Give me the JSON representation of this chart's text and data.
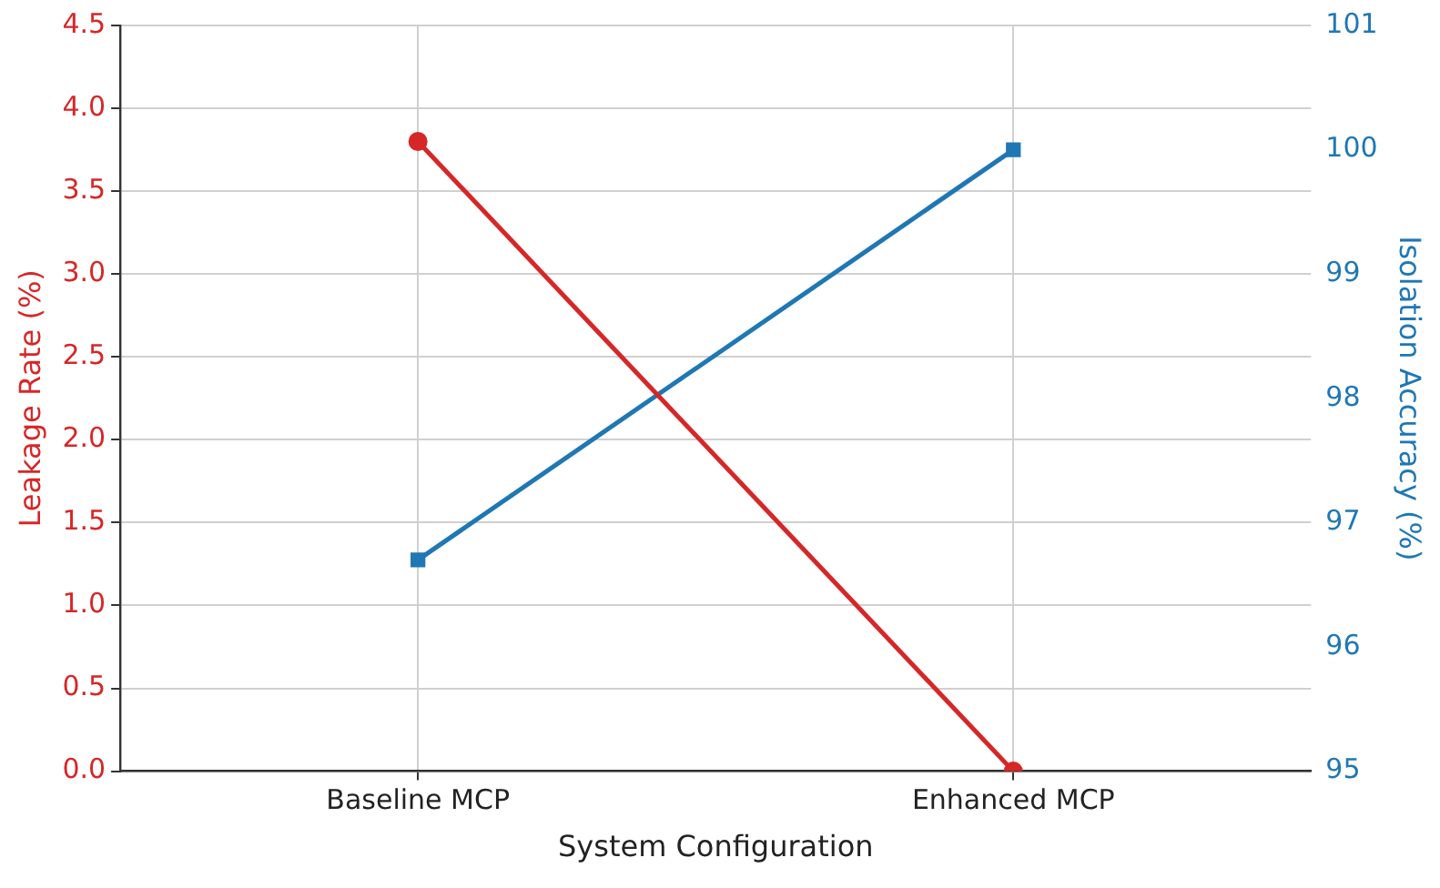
{
  "chart_data": {
    "type": "line",
    "xlabel": "System Configuration",
    "ylabel": "Leakage Rate (%)",
    "y2label": "Isolation Accuracy (%)",
    "categories": [
      "Baseline MCP",
      "Enhanced MCP"
    ],
    "series": [
      {
        "color": "#d62728",
        "values": [
          3.8,
          0.0
        ],
        "marker": "circle",
        "axis": "y"
      },
      {
        "color": "#1f77b4",
        "values": [
          96.7,
          100.0
        ],
        "marker": "square",
        "axis": "y2"
      }
    ],
    "ylim": [
      0,
      4.5
    ],
    "yticks": [
      {
        "value": 0,
        "label": "0.0"
      },
      0.5,
      {
        "value": 1,
        "label": "1.0"
      },
      1.5,
      {
        "value": 2,
        "label": "2.0"
      },
      2.5,
      {
        "value": 3,
        "label": "3.0"
      },
      3.5,
      {
        "value": 4,
        "label": "4.0"
      },
      4.5
    ],
    "y2lim": [
      95,
      101
    ],
    "y2ticks": [
      95,
      96,
      97,
      98,
      99,
      100,
      101
    ],
    "grid": true,
    "legend": false
  }
}
